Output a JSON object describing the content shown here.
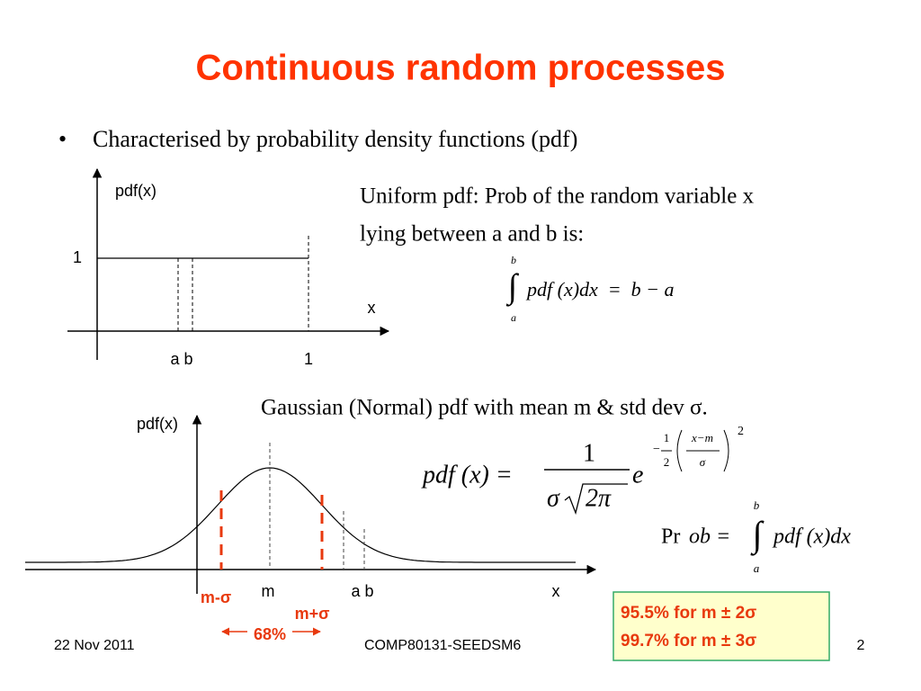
{
  "title": "Continuous random processes",
  "bullet": "Characterised by probability density functions (pdf)",
  "uniform": {
    "y_label": "pdf(x)",
    "y_tick": "1",
    "x_label": "x",
    "x_ticks": [
      "a b",
      "1"
    ],
    "text": [
      "Uniform pdf:  Prob of the random variable x",
      "lying between a and b is:"
    ],
    "formula": {
      "upper": "b",
      "lower": "a",
      "body": "pdf (x)dx  =  b − a"
    }
  },
  "gaussian": {
    "text": "Gaussian (Normal) pdf with mean m & std dev σ.",
    "y_label": "pdf(x)",
    "x_ticks": [
      "m",
      "a b",
      "x"
    ],
    "lower_marker": "m-σ",
    "upper_marker": "m+σ",
    "range": "68%",
    "pdf_formula": {
      "lhs": "pdf (x) =",
      "numerator": "1",
      "sigma": "σ",
      "root": "2π",
      "base": "e",
      "exp_sign": "−",
      "exp_num": "1",
      "exp_den": "2",
      "frac_num": "x−m",
      "frac_den": "σ",
      "power": "2"
    },
    "prob_formula": {
      "prefix": "Pr",
      "lhs": "ob =",
      "upper": "b",
      "lower": "a",
      "body": "pdf (x)dx"
    }
  },
  "note": [
    "95.5% for m ± 2σ",
    "99.7% for m ± 3σ"
  ],
  "footer": {
    "date": "22 Nov 2011",
    "course": "COMP80131-SEEDSM6",
    "page": "2"
  }
}
